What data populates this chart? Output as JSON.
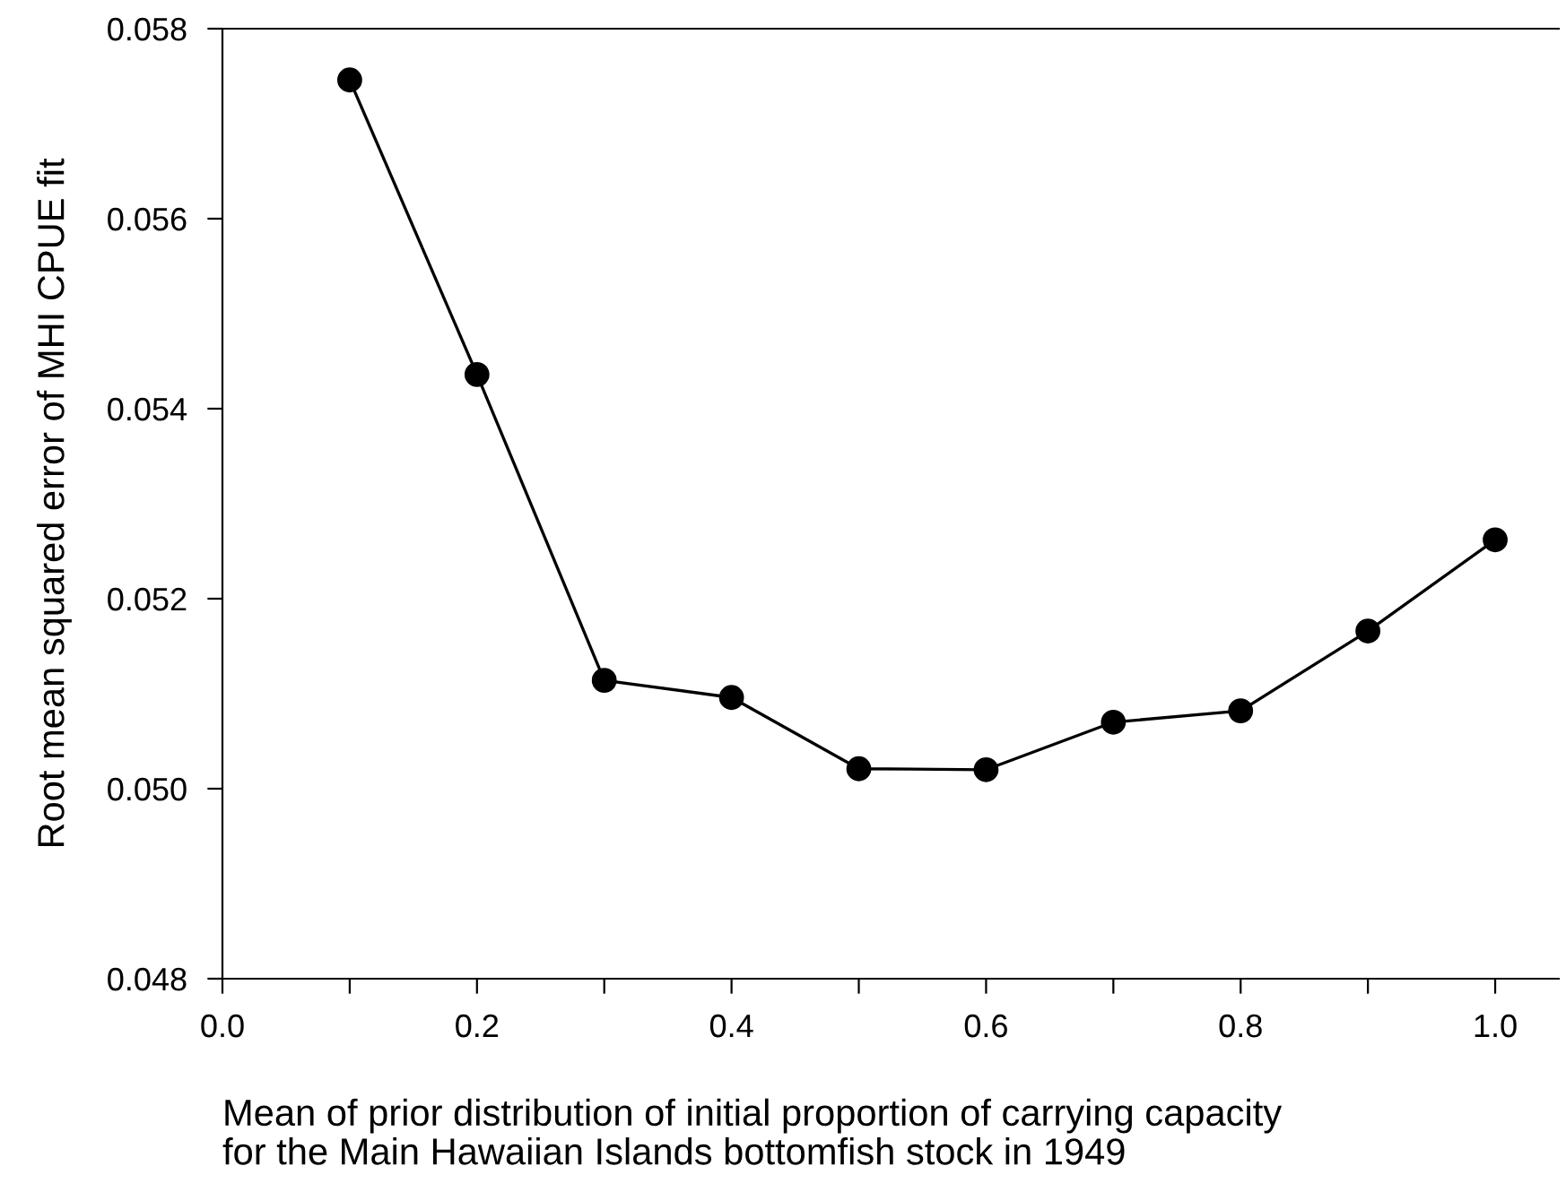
{
  "chart_data": {
    "type": "line",
    "xlabel": "Mean of prior distribution of initial proportion of carrying capacity\nfor the Main Hawaiian Islands bottomfish stock in 1949",
    "ylabel": "Root mean squared error of MHI CPUE fit",
    "x": [
      0.1,
      0.2,
      0.3,
      0.4,
      0.5,
      0.6,
      0.7,
      0.8,
      0.9,
      1.0
    ],
    "series": [
      {
        "color": "#000000",
        "values": [
          0.05746,
          0.05436,
          0.05114,
          0.05096,
          0.05021,
          0.0502,
          0.0507,
          0.05082,
          0.05166,
          0.05262
        ]
      }
    ],
    "marker": "circle",
    "line_style": "solid",
    "grid": false,
    "legend": false,
    "xlim": [
      0.0,
      1.05
    ],
    "xticks": [
      {
        "value": 0.0,
        "label": "0.0"
      },
      {
        "value": 0.1,
        "label": null
      },
      {
        "value": 0.2,
        "label": "0.2"
      },
      {
        "value": 0.3,
        "label": null
      },
      {
        "value": 0.4,
        "label": "0.4"
      },
      {
        "value": 0.5,
        "label": null
      },
      {
        "value": 0.6,
        "label": "0.6"
      },
      {
        "value": 0.7,
        "label": null
      },
      {
        "value": 0.8,
        "label": "0.8"
      },
      {
        "value": 0.9,
        "label": null
      },
      {
        "value": 1.0,
        "label": "1.0"
      }
    ],
    "ylim": [
      0.048,
      0.058
    ],
    "yticks": [
      0.048,
      {
        "value": 0.05,
        "label": "0.050"
      },
      0.052,
      0.054,
      0.056,
      0.058
    ]
  }
}
